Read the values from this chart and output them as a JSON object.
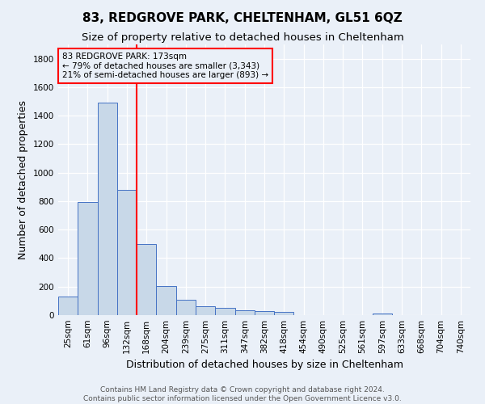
{
  "title": "83, REDGROVE PARK, CHELTENHAM, GL51 6QZ",
  "subtitle": "Size of property relative to detached houses in Cheltenham",
  "xlabel": "Distribution of detached houses by size in Cheltenham",
  "ylabel": "Number of detached properties",
  "footer_line1": "Contains HM Land Registry data © Crown copyright and database right 2024.",
  "footer_line2": "Contains public sector information licensed under the Open Government Licence v3.0.",
  "categories": [
    "25sqm",
    "61sqm",
    "96sqm",
    "132sqm",
    "168sqm",
    "204sqm",
    "239sqm",
    "275sqm",
    "311sqm",
    "347sqm",
    "382sqm",
    "418sqm",
    "454sqm",
    "490sqm",
    "525sqm",
    "561sqm",
    "597sqm",
    "633sqm",
    "668sqm",
    "704sqm",
    "740sqm"
  ],
  "values": [
    130,
    795,
    1490,
    880,
    500,
    205,
    105,
    65,
    50,
    35,
    28,
    20,
    0,
    0,
    0,
    0,
    12,
    0,
    0,
    0,
    0
  ],
  "bar_color": "#c8d8e8",
  "bar_edgecolor": "#4472c4",
  "redline_index": 4,
  "annotation_line1": "83 REDGROVE PARK: 173sqm",
  "annotation_line2": "← 79% of detached houses are smaller (3,343)",
  "annotation_line3": "21% of semi-detached houses are larger (893) →",
  "annotation_box_edgecolor": "red",
  "redline_color": "red",
  "ylim": [
    0,
    1900
  ],
  "yticks": [
    0,
    200,
    400,
    600,
    800,
    1000,
    1200,
    1400,
    1600,
    1800
  ],
  "background_color": "#eaf0f8",
  "grid_color": "#ffffff",
  "title_fontsize": 11,
  "subtitle_fontsize": 9.5,
  "axis_label_fontsize": 9,
  "tick_fontsize": 7.5,
  "footer_fontsize": 6.5
}
